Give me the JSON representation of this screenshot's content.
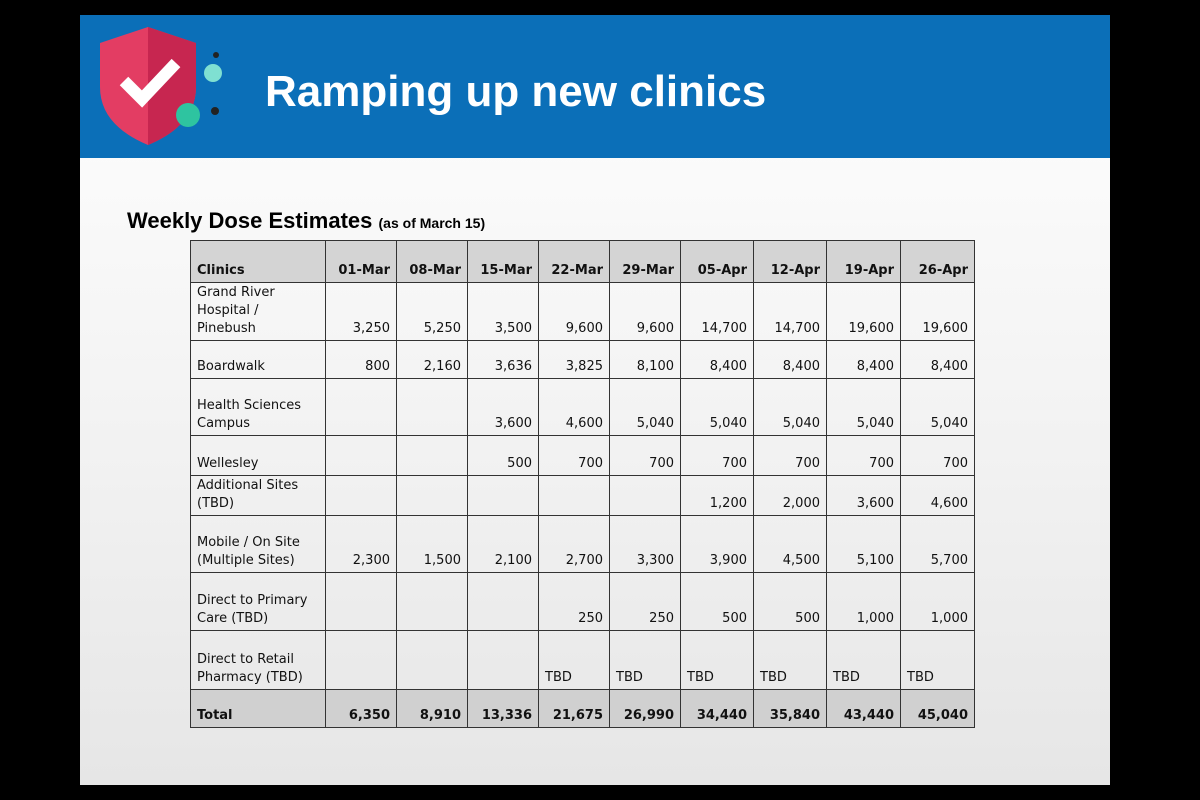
{
  "header": {
    "title": "Ramping up new clinics"
  },
  "subtitle": {
    "text": "Weekly Dose Estimates",
    "note": "(as of March 15)"
  },
  "table": {
    "headers": [
      "Clinics",
      "01-Mar",
      "08-Mar",
      "15-Mar",
      "22-Mar",
      "29-Mar",
      "05-Apr",
      "12-Apr",
      "19-Apr",
      "26-Apr"
    ],
    "rows": [
      [
        "Grand River Hospital / Pinebush",
        "3,250",
        "5,250",
        "3,500",
        "9,600",
        "9,600",
        "14,700",
        "14,700",
        "19,600",
        "19,600"
      ],
      [
        "Boardwalk",
        "800",
        "2,160",
        "3,636",
        "3,825",
        "8,100",
        "8,400",
        "8,400",
        "8,400",
        "8,400"
      ],
      [
        "Health Sciences Campus",
        "",
        "",
        "3,600",
        "4,600",
        "5,040",
        "5,040",
        "5,040",
        "5,040",
        "5,040"
      ],
      [
        "Wellesley",
        "",
        "",
        "500",
        "700",
        "700",
        "700",
        "700",
        "700",
        "700"
      ],
      [
        "Additional Sites (TBD)",
        "",
        "",
        "",
        "",
        "",
        "1,200",
        "2,000",
        "3,600",
        "4,600"
      ],
      [
        "Mobile / On Site (Multiple Sites)",
        "2,300",
        "1,500",
        "2,100",
        "2,700",
        "3,300",
        "3,900",
        "4,500",
        "5,100",
        "5,700"
      ],
      [
        "Direct to Primary Care (TBD)",
        "",
        "",
        "",
        "250",
        "250",
        "500",
        "500",
        "1,000",
        "1,000"
      ],
      [
        "Direct to Retail Pharmacy (TBD)",
        "",
        "",
        "",
        "TBD",
        "TBD",
        "TBD",
        "TBD",
        "TBD",
        "TBD"
      ],
      [
        "Total",
        "6,350",
        "8,910",
        "13,336",
        "21,675",
        "26,990",
        "34,440",
        "35,840",
        "43,440",
        "45,040"
      ]
    ]
  }
}
